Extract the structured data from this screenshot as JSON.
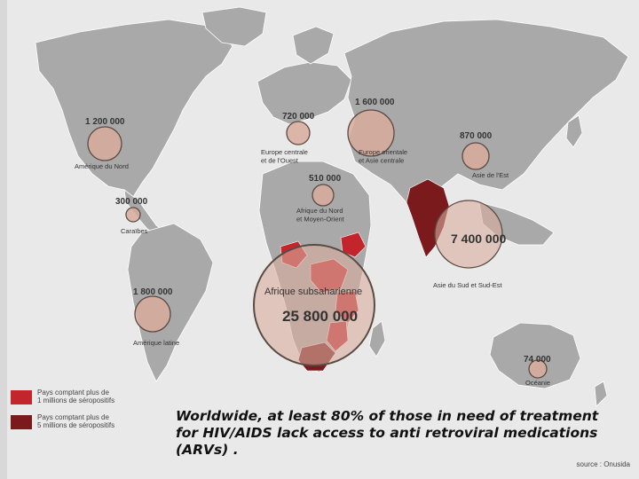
{
  "caption": {
    "line1": "Worldwide, at least 80% of those in need of treatment",
    "line2": "for HIV/AIDS lack access to anti retroviral medications",
    "line3": "(ARVs) ."
  },
  "source": "source : Onusida",
  "legend": [
    {
      "line1": "Pays comptant plus de",
      "line2": "1 millions de séropositifs",
      "color": "#c3252d"
    },
    {
      "line1": "Pays comptant plus de",
      "line2": "5 millions de séropositifs",
      "color": "#7a1a1d"
    }
  ],
  "colors": {
    "land": "#a9a9a9",
    "water": "#e9e9e9",
    "bubble_fill": "#d8ad9c",
    "bubble_stroke": "#5a4a44",
    "over_1m": "#c3252d",
    "over_5m": "#7a1a1d"
  },
  "regions": [
    {
      "id": "north-america",
      "value": "1 200 000",
      "label1": "Amérique du Nord",
      "label2": ""
    },
    {
      "id": "caribbean",
      "value": "300 000",
      "label1": "Caraïbes",
      "label2": ""
    },
    {
      "id": "latin-america",
      "value": "1 800 000",
      "label1": "Amérique latine",
      "label2": ""
    },
    {
      "id": "western-europe",
      "value": "720 000",
      "label1": "Europe centrale",
      "label2": "et de l'Ouest"
    },
    {
      "id": "eastern-europe",
      "value": "1 600 000",
      "label1": "Europe orientale",
      "label2": "et Asie centrale"
    },
    {
      "id": "east-asia",
      "value": "870 000",
      "label1": "Asie de l'Est",
      "label2": ""
    },
    {
      "id": "north-africa",
      "value": "510 000",
      "label1": "Afrique du Nord",
      "label2": "et Moyen-Orient"
    },
    {
      "id": "south-asia",
      "value": "7 400 000",
      "label1": "Asie du Sud et Sud-Est",
      "label2": ""
    },
    {
      "id": "sub-saharan-africa",
      "value": "25 800 000",
      "label1": "Afrique subsaharienne",
      "label2": ""
    },
    {
      "id": "oceania",
      "value": "74 000",
      "label1": "Océanie",
      "label2": ""
    }
  ]
}
